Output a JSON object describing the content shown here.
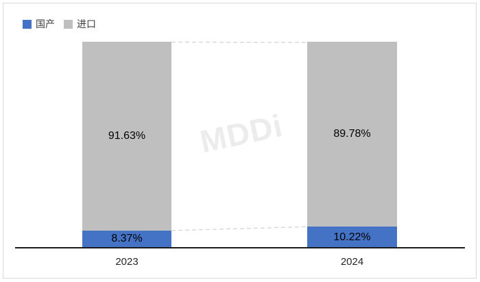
{
  "chart_data": {
    "type": "bar",
    "stacked": true,
    "orientation": "vertical",
    "unit": "%",
    "categories": [
      "2023",
      "2024"
    ],
    "series": [
      {
        "name": "国产",
        "color": "#4472c4",
        "values": [
          8.37,
          10.22
        ],
        "labels": [
          "8.37%",
          "10.22%"
        ]
      },
      {
        "name": "进口",
        "color": "#bfbfbf",
        "values": [
          91.63,
          89.78
        ],
        "labels": [
          "91.63%",
          "89.78%"
        ]
      }
    ],
    "ylim": [
      0,
      100
    ],
    "grid": false,
    "legend_position": "top-left",
    "series_connector_lines": "dashed"
  },
  "watermark": {
    "text": "MDDi",
    "color": "#ececec"
  },
  "colors": {
    "domestic_blue": "#4472c4",
    "imported_gray": "#bfbfbf",
    "axis": "#1a1a1a",
    "dash_line": "#d9d9d9",
    "frame_border": "#d9d9d9",
    "label_text": "#000000"
  }
}
